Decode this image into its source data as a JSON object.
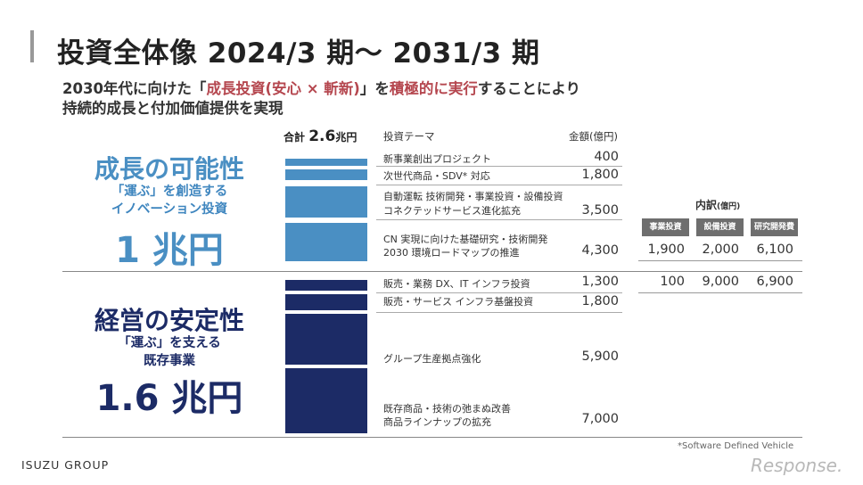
{
  "title": "投資全体像 2024/3 期～ 2031/3 期",
  "subtitle": {
    "line1_pre": "2030年代に向けた「",
    "line1_highlight1": "成長投資(安心 × 斬新)",
    "line1_mid": "」を",
    "line1_highlight2": "積極的に実行",
    "line1_post": "することにより",
    "line2": "持続的成長と付加価値提供を実現"
  },
  "total": {
    "label": "合計",
    "value": "2.6",
    "unit": "兆円"
  },
  "headers": {
    "theme": "投資テーマ",
    "amount": "金額(億円)"
  },
  "growth": {
    "title": "成長の可能性",
    "sub1": "「運ぶ」を創造する",
    "sub2": "イノベーション投資",
    "amount": "1 兆円",
    "color": "#4a8fc3"
  },
  "stable": {
    "title": "経営の安定性",
    "sub1": "「運ぶ」を支える",
    "sub2": "既存事業",
    "amount": "1.6 兆円",
    "color": "#1c2b66"
  },
  "rows": [
    {
      "theme1": "新事業創出プロジェクト",
      "theme2": "",
      "amount": "400",
      "value": 400,
      "group": "growth"
    },
    {
      "theme1": "次世代商品・SDV* 対応",
      "theme2": "",
      "amount": "1,800",
      "value": 1800,
      "group": "growth"
    },
    {
      "theme1": "自動運転 技術開発・事業投資・設備投資",
      "theme2": "コネクテッドサービス進化拡充",
      "amount": "3,500",
      "value": 3500,
      "group": "growth"
    },
    {
      "theme1": "CN 実現に向けた基礎研究・技術開発",
      "theme2": "2030 環境ロードマップの推進",
      "amount": "4,300",
      "value": 4300,
      "group": "growth"
    },
    {
      "theme1": "販売・業務 DX、IT インフラ投資",
      "theme2": "",
      "amount": "1,300",
      "value": 1300,
      "group": "stable"
    },
    {
      "theme1": "販売・サービス インフラ基盤投資",
      "theme2": "",
      "amount": "1,800",
      "value": 1800,
      "group": "stable"
    },
    {
      "theme1": "グループ生産拠点強化",
      "theme2": "",
      "amount": "5,900",
      "value": 5900,
      "group": "stable"
    },
    {
      "theme1": "既存商品・技術の弛まぬ改善",
      "theme2": "商品ラインナップの拡充",
      "amount": "7,000",
      "value": 7000,
      "group": "stable"
    }
  ],
  "breakdown": {
    "title": "内訳",
    "unit": "(億円)",
    "headers": [
      "事業投資",
      "設備投資",
      "研究開発費"
    ],
    "growth_values": [
      "1,900",
      "2,000",
      "6,100"
    ],
    "stable_values": [
      "100",
      "9,000",
      "6,900"
    ]
  },
  "footnote": "*Software Defined Vehicle",
  "logo": "ISUZU GROUP",
  "watermark": "Response."
}
